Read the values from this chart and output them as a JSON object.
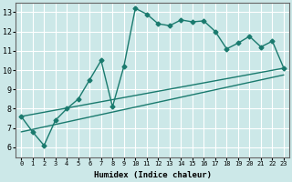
{
  "xlabel": "Humidex (Indice chaleur)",
  "background_color": "#cce8e8",
  "grid_color": "#ffffff",
  "line_color": "#1a7a6e",
  "x_ticks": [
    0,
    1,
    2,
    3,
    4,
    5,
    6,
    7,
    8,
    9,
    10,
    11,
    12,
    13,
    14,
    15,
    16,
    17,
    18,
    19,
    20,
    21,
    22,
    23
  ],
  "ylim": [
    5.5,
    13.5
  ],
  "xlim": [
    -0.5,
    23.5
  ],
  "yticks": [
    6,
    7,
    8,
    9,
    10,
    11,
    12,
    13
  ],
  "series1_x": [
    0,
    1,
    2,
    3,
    4,
    5,
    6,
    7,
    8,
    9,
    10,
    11,
    12,
    13,
    14,
    15,
    16,
    17,
    18,
    19,
    20,
    21,
    22,
    23
  ],
  "series1_y": [
    7.6,
    6.8,
    6.1,
    7.4,
    8.0,
    8.5,
    9.5,
    10.5,
    8.1,
    10.2,
    13.2,
    12.9,
    12.4,
    12.3,
    12.6,
    12.5,
    12.55,
    12.0,
    11.1,
    11.4,
    11.75,
    11.2,
    11.5,
    10.1
  ],
  "series2_x": [
    0,
    23
  ],
  "series2_y": [
    7.6,
    10.1
  ],
  "series3_x": [
    0,
    23
  ],
  "series3_y": [
    6.8,
    9.75
  ],
  "marker_style": "D",
  "marker_size": 2.5,
  "line_width": 1.0,
  "tick_fontsize": 5.0,
  "xlabel_fontsize": 6.5
}
